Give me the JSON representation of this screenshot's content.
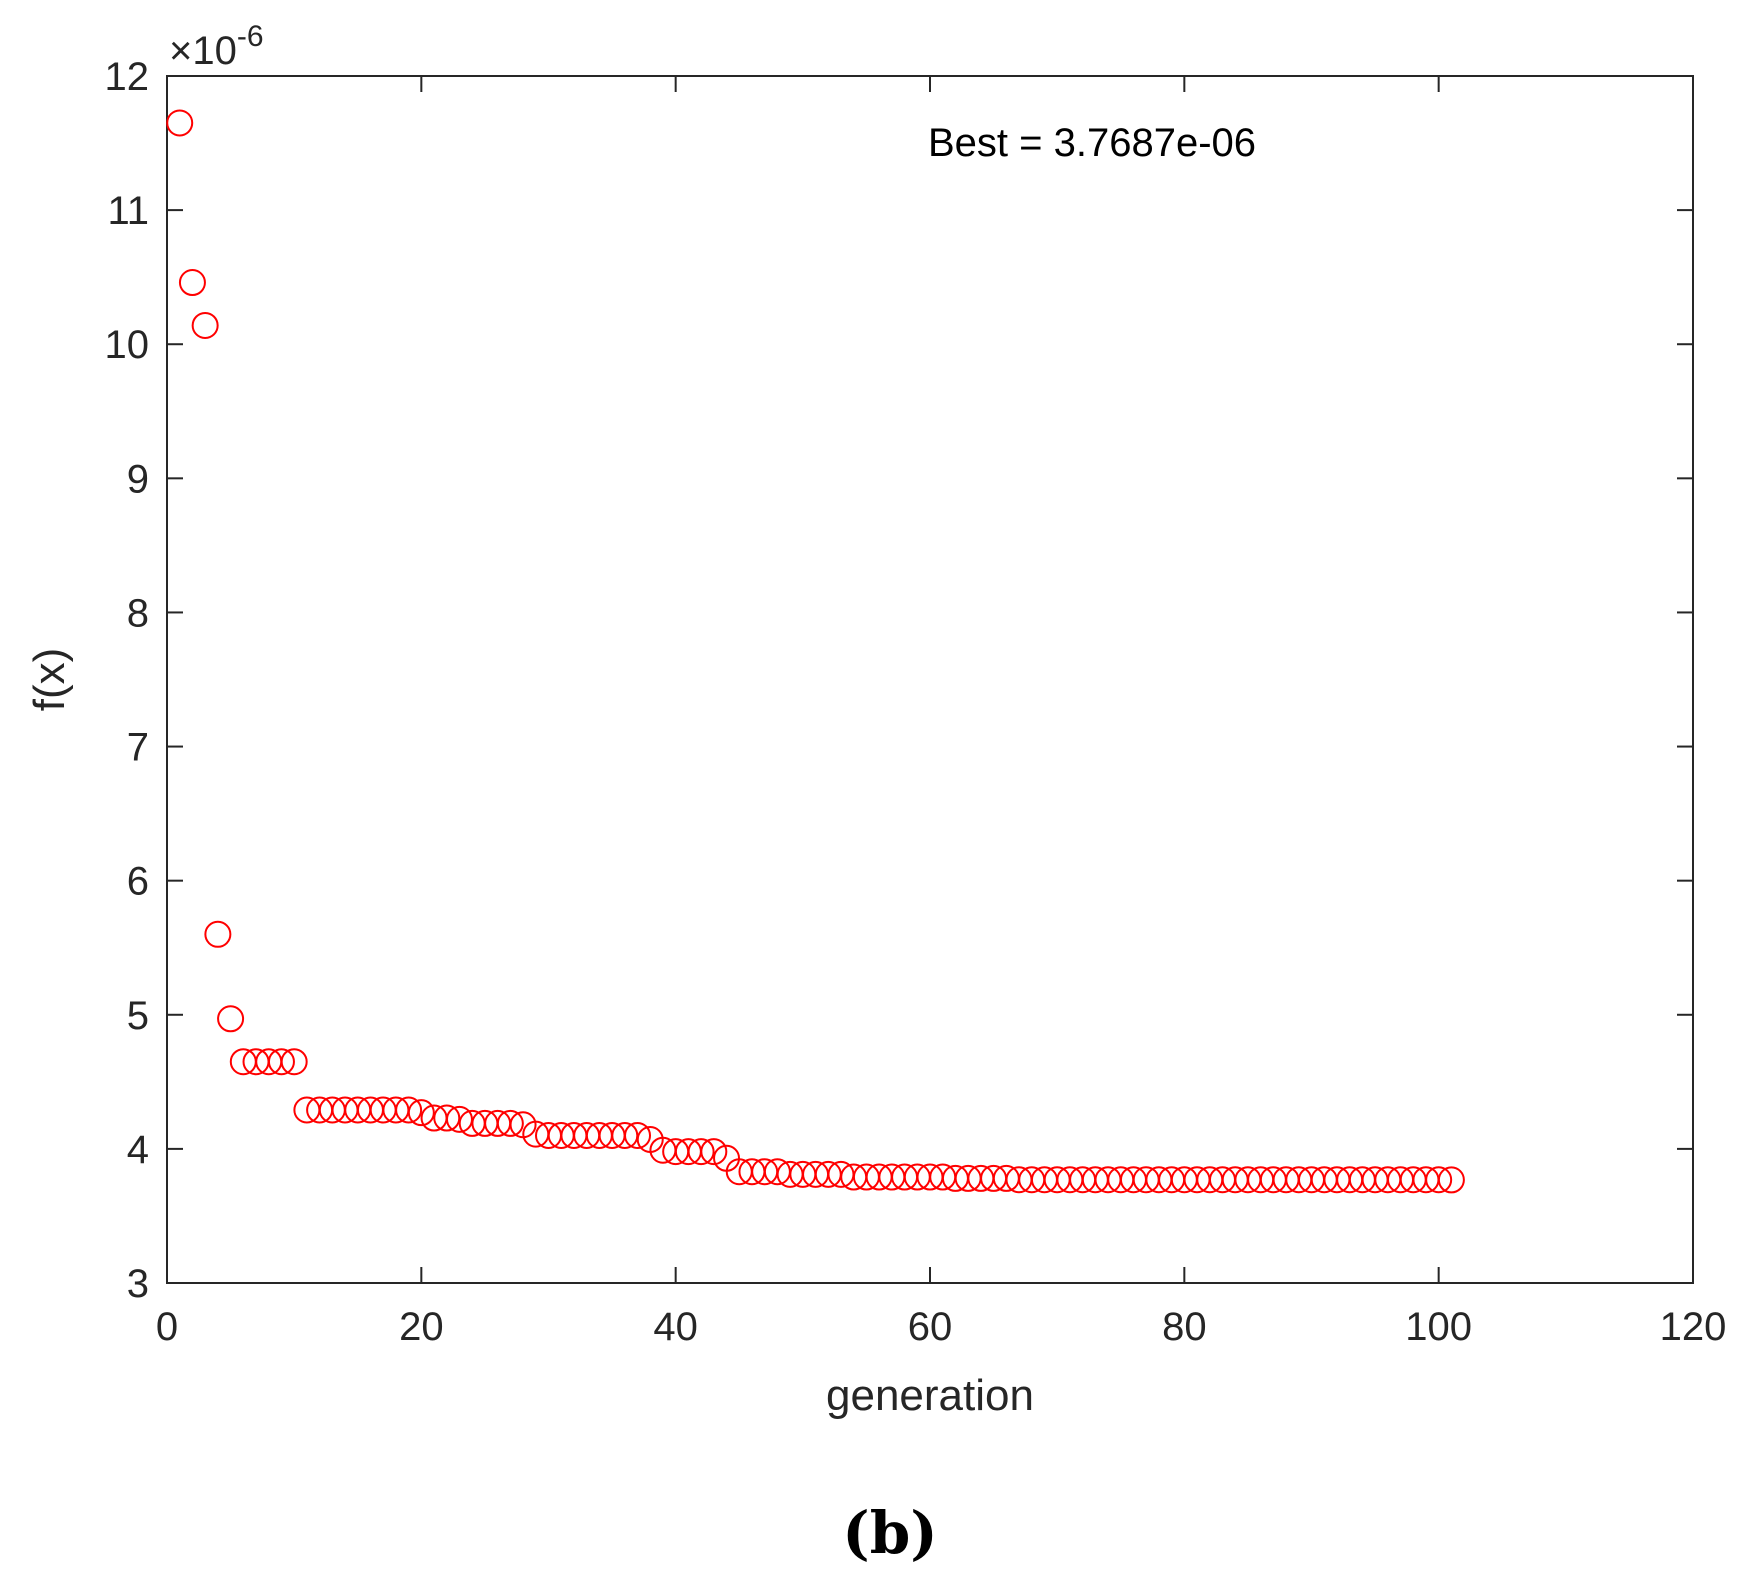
{
  "chart_data": {
    "type": "scatter",
    "xlabel": "generation",
    "ylabel": "f(x)",
    "xlim": [
      0,
      120
    ],
    "ylim": [
      3,
      12
    ],
    "x_ticks": [
      "0",
      "20",
      "40",
      "60",
      "80",
      "100",
      "120"
    ],
    "y_ticks": [
      "3",
      "4",
      "5",
      "6",
      "7",
      "8",
      "9",
      "10",
      "11",
      "12"
    ],
    "y_exponent": "-6",
    "annotation": "Best = 3.7687e-06",
    "panel_label": "(b)",
    "marker": "open-circle",
    "marker_color": "#ff0000",
    "axis_color": "#262626",
    "grid": false,
    "series": [
      {
        "x": [
          1,
          2,
          3,
          4,
          5,
          6,
          7,
          8,
          9,
          10,
          11,
          12,
          13,
          14,
          15,
          16,
          17,
          18,
          19,
          20,
          21,
          22,
          23,
          24,
          25,
          26,
          27,
          28,
          29,
          30,
          31,
          32,
          33,
          34,
          35,
          36,
          37,
          38,
          39,
          40,
          41,
          42,
          43,
          44,
          45,
          46,
          47,
          48,
          49,
          50,
          51,
          52,
          53,
          54,
          55,
          56,
          57,
          58,
          59,
          60,
          61,
          62,
          63,
          64,
          65,
          66,
          67,
          68,
          69,
          70,
          71,
          72,
          73,
          74,
          75,
          76,
          77,
          78,
          79,
          80,
          81,
          82,
          83,
          84,
          85,
          86,
          87,
          88,
          89,
          90,
          91,
          92,
          93,
          94,
          95,
          96,
          97,
          98,
          99,
          100,
          101
        ],
        "y": [
          11.65,
          10.46,
          10.14,
          5.6,
          4.97,
          4.65,
          4.65,
          4.65,
          4.65,
          4.65,
          4.29,
          4.29,
          4.29,
          4.29,
          4.29,
          4.29,
          4.29,
          4.29,
          4.29,
          4.27,
          4.23,
          4.23,
          4.22,
          4.19,
          4.19,
          4.19,
          4.19,
          4.18,
          4.11,
          4.1,
          4.1,
          4.1,
          4.1,
          4.1,
          4.1,
          4.1,
          4.1,
          4.07,
          3.99,
          3.98,
          3.98,
          3.98,
          3.98,
          3.93,
          3.83,
          3.83,
          3.83,
          3.83,
          3.81,
          3.81,
          3.81,
          3.81,
          3.81,
          3.79,
          3.79,
          3.79,
          3.79,
          3.79,
          3.79,
          3.79,
          3.79,
          3.78,
          3.78,
          3.78,
          3.78,
          3.78,
          3.77,
          3.77,
          3.77,
          3.77,
          3.77,
          3.77,
          3.77,
          3.77,
          3.77,
          3.77,
          3.77,
          3.77,
          3.77,
          3.77,
          3.77,
          3.77,
          3.77,
          3.77,
          3.77,
          3.77,
          3.77,
          3.77,
          3.77,
          3.77,
          3.77,
          3.77,
          3.77,
          3.77,
          3.77,
          3.77,
          3.77,
          3.77,
          3.77,
          3.77,
          3.7687
        ]
      }
    ]
  }
}
